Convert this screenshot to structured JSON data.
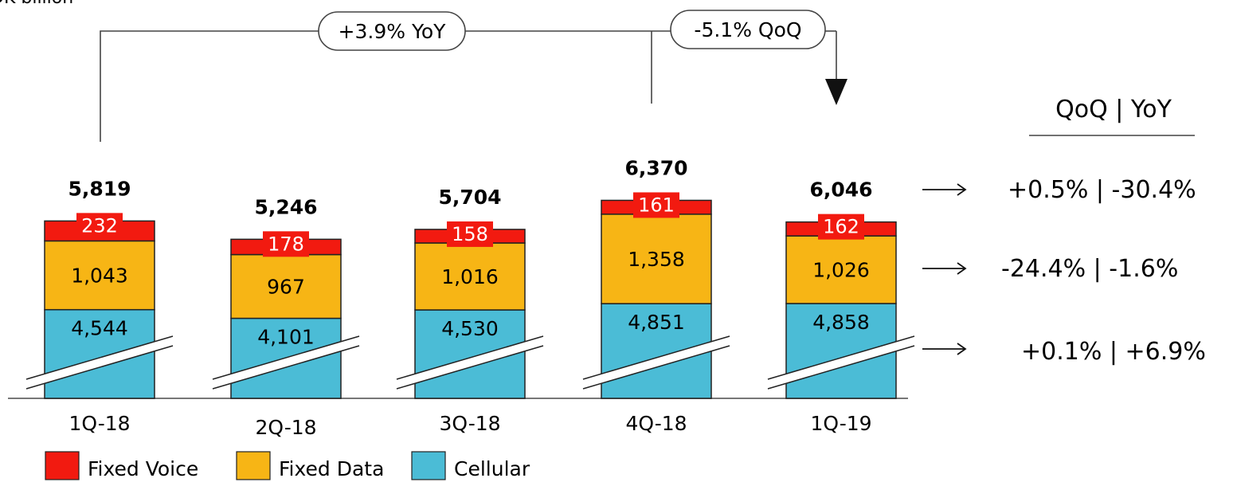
{
  "chart_data": {
    "type": "bar",
    "stacked": true,
    "unit_label": "DK billion",
    "categories": [
      "1Q-18",
      "2Q-18",
      "3Q-18",
      "4Q-18",
      "1Q-19"
    ],
    "series": [
      {
        "name": "Cellular",
        "values": [
          4544,
          4101,
          4530,
          4851,
          4858
        ],
        "labels": [
          "4,544",
          "4,101",
          "4,530",
          "4,851",
          "4,858"
        ],
        "color": "#4BBCD6"
      },
      {
        "name": "Fixed Data",
        "values": [
          1043,
          967,
          1016,
          1358,
          1026
        ],
        "labels": [
          "1,043",
          "967",
          "1,016",
          "1,358",
          "1,026"
        ],
        "color": "#F7B515"
      },
      {
        "name": "Fixed Voice",
        "values": [
          232,
          178,
          158,
          161,
          162
        ],
        "labels": [
          "232",
          "178",
          "158",
          "161",
          "162"
        ],
        "color": "#F21A10"
      }
    ],
    "totals": [
      5819,
      5246,
      5704,
      6370,
      6046
    ],
    "total_labels": [
      "5,819",
      "5,246",
      "5,704",
      "6,370",
      "6,046"
    ],
    "axis_break": true,
    "legend_position": "bottom-left",
    "annotations": {
      "yoy": "+3.9% YoY",
      "qoq": "-5.1% QoQ",
      "side_header": "QoQ | YoY",
      "side_rows": [
        "+0.5% | -30.4%",
        "-24.4% | -1.6%",
        "+0.1% | +6.9%"
      ]
    }
  }
}
